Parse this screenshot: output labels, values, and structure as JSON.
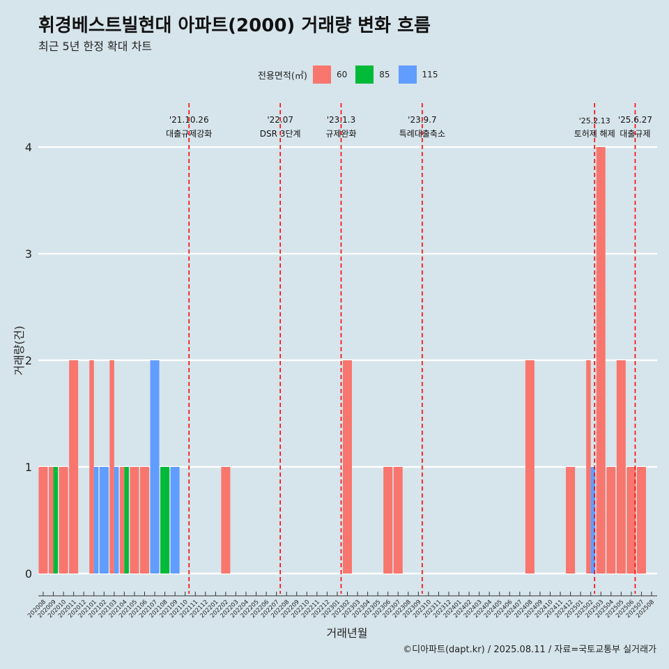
{
  "title": "휘경베스트빌현대 아파트(2000) 거래량 변화 흐름",
  "subtitle": "최근 5년 한정 확대 차트",
  "caption": "©디아파트(dapt.kr) / 2025.08.11 / 자료=국토교통부 실거래가",
  "legend": {
    "title": "전용면적(㎡)",
    "items": [
      {
        "label": "60",
        "color": "#f8766d"
      },
      {
        "label": "85",
        "color": "#00ba38"
      },
      {
        "label": "115",
        "color": "#619cff"
      }
    ]
  },
  "chart_data": {
    "type": "bar",
    "xlabel": "거래년월",
    "ylabel": "거래량(건)",
    "ylim": [
      0,
      4
    ],
    "yticks": [
      0,
      1,
      2,
      3,
      4
    ],
    "categories": [
      "202008",
      "202009",
      "202010",
      "202011",
      "202012",
      "202101",
      "202102",
      "202103",
      "202104",
      "202105",
      "202106",
      "202107",
      "202108",
      "202109",
      "202110",
      "202111",
      "202112",
      "202201",
      "202202",
      "202203",
      "202204",
      "202205",
      "202206",
      "202207",
      "202208",
      "202209",
      "202210",
      "202211",
      "202212",
      "202301",
      "202302",
      "202303",
      "202304",
      "202305",
      "202306",
      "202307",
      "202308",
      "202309",
      "202310",
      "202311",
      "202312",
      "202401",
      "202402",
      "202403",
      "202404",
      "202405",
      "202406",
      "202407",
      "202408",
      "202409",
      "202410",
      "202411",
      "202412",
      "202501",
      "202502",
      "202503",
      "202504",
      "202505",
      "202506",
      "202507",
      "202508"
    ],
    "series": [
      {
        "name": "60",
        "color": "#f8766d",
        "values": {
          "202008": 1,
          "202009": 1,
          "202010": 1,
          "202011": 2,
          "202101": 2,
          "202103": 2,
          "202104": 1,
          "202105": 1,
          "202106": 1,
          "202202": 1,
          "202302": 2,
          "202306": 1,
          "202307": 1,
          "202408": 2,
          "202412": 1,
          "202502": 2,
          "202503": 4,
          "202504": 1,
          "202505": 2,
          "202506": 1,
          "202507": 1
        }
      },
      {
        "name": "85",
        "color": "#00ba38",
        "values": {
          "202009": 1,
          "202104": 1,
          "202108": 1
        }
      },
      {
        "name": "115",
        "color": "#619cff",
        "values": {
          "202101": 1,
          "202102": 1,
          "202103": 1,
          "202107": 2,
          "202109": 1,
          "202502": 1
        }
      }
    ],
    "events": [
      {
        "date": "'21.10.26",
        "label": "대출규제강화",
        "month": "202110"
      },
      {
        "date": "'22.07",
        "label": "DSR 3단계",
        "month": "202207"
      },
      {
        "date": "'23.1.3",
        "label": "규제완화",
        "month": "202301"
      },
      {
        "date": "'23.9.7",
        "label": "특례대출축소",
        "month": "202309"
      },
      {
        "date": "'25.2.13",
        "label": "토허제 해제",
        "month": "202502"
      },
      {
        "date": "'25.6.27",
        "label": "대출규제",
        "month": "202506"
      }
    ]
  }
}
